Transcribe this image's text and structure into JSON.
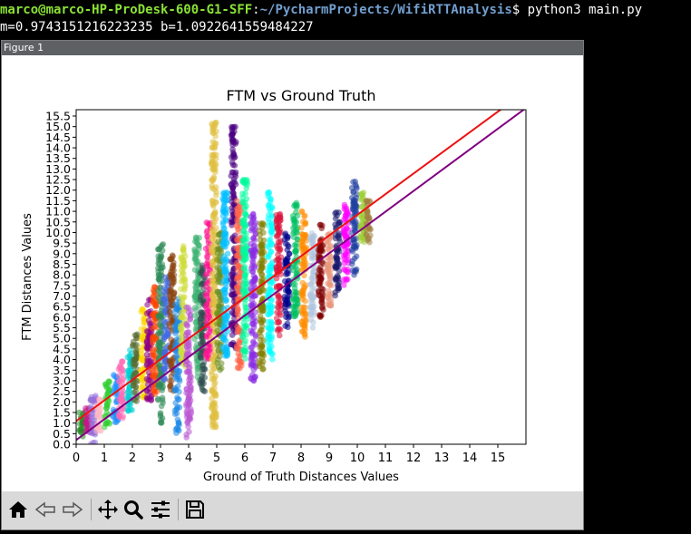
{
  "terminal": {
    "user_host": "marco@marco-HP-ProDesk-600-G1-SFF",
    "separator": ":",
    "path": "~/PycharmProjects/WifiRTTAnalysis",
    "prompt_symbol": "$",
    "command": " python3 main.py",
    "output_line": "m=0.9743151216223235 b=1.0922641559484227"
  },
  "figure_window": {
    "title": "Figure 1"
  },
  "toolbar": {
    "buttons": [
      {
        "name": "home",
        "icon": "home-icon"
      },
      {
        "name": "back",
        "icon": "back-arrow-icon"
      },
      {
        "name": "forward",
        "icon": "forward-arrow-icon"
      },
      {
        "name": "pan",
        "icon": "move-icon"
      },
      {
        "name": "zoom",
        "icon": "zoom-icon"
      },
      {
        "name": "configure",
        "icon": "sliders-icon"
      },
      {
        "name": "save",
        "icon": "save-icon"
      }
    ]
  },
  "chart_data": {
    "type": "scatter",
    "title": "FTM vs Ground Truth",
    "xlabel": "Ground of Truth Distances Values",
    "ylabel": "FTM Distances Values",
    "xlim": [
      0,
      16
    ],
    "ylim": [
      0,
      15.8
    ],
    "xticks": [
      "0",
      "1",
      "2",
      "3",
      "4",
      "5",
      "6",
      "7",
      "8",
      "9",
      "10",
      "11",
      "12",
      "13",
      "14",
      "15"
    ],
    "yticks": [
      "0.0",
      "0.5",
      "1.0",
      "1.5",
      "2.0",
      "2.5",
      "3.0",
      "3.5",
      "4.0",
      "4.5",
      "5.0",
      "5.5",
      "6.0",
      "6.5",
      "7.0",
      "7.5",
      "8.0",
      "8.5",
      "9.0",
      "9.5",
      "10.0",
      "10.5",
      "11.0",
      "11.5",
      "12.0",
      "12.5",
      "13.0",
      "13.5",
      "14.0",
      "14.5",
      "15.0",
      "15.5"
    ],
    "lines": [
      {
        "color": "#ee1111",
        "slope": 0.9743151216223235,
        "intercept": 1.0922641559484227
      },
      {
        "color": "#800080",
        "slope": 0.98,
        "intercept": 0.2
      }
    ],
    "clusters": [
      {
        "x": 0.2,
        "ymin": 0.3,
        "ymax": 1.6,
        "color": "#228b22"
      },
      {
        "x": 0.4,
        "ymin": 0.5,
        "ymax": 1.8,
        "color": "#c71585"
      },
      {
        "x": 0.6,
        "ymin": 0.0,
        "ymax": 2.3,
        "color": "#9370db"
      },
      {
        "x": 0.8,
        "ymin": 0.6,
        "ymax": 2.2,
        "color": "#ffb6c1"
      },
      {
        "x": 1.1,
        "ymin": 0.8,
        "ymax": 3.0,
        "color": "#32cd32"
      },
      {
        "x": 1.4,
        "ymin": 1.0,
        "ymax": 3.4,
        "color": "#1e90ff"
      },
      {
        "x": 1.6,
        "ymin": 1.2,
        "ymax": 4.0,
        "color": "#ff69b4"
      },
      {
        "x": 1.9,
        "ymin": 1.5,
        "ymax": 4.6,
        "color": "#00ced1"
      },
      {
        "x": 2.1,
        "ymin": 2.0,
        "ymax": 5.2,
        "color": "#556b2f"
      },
      {
        "x": 2.4,
        "ymin": 2.2,
        "ymax": 6.5,
        "color": "#ffd700"
      },
      {
        "x": 2.6,
        "ymin": 2.0,
        "ymax": 7.0,
        "color": "#8b008b"
      },
      {
        "x": 2.8,
        "ymin": 2.3,
        "ymax": 7.5,
        "color": "#ff4500"
      },
      {
        "x": 3.0,
        "ymin": 1.0,
        "ymax": 9.5,
        "color": "#2e8b57"
      },
      {
        "x": 3.2,
        "ymin": 3.0,
        "ymax": 8.0,
        "color": "#4169e1"
      },
      {
        "x": 3.4,
        "ymin": 2.5,
        "ymax": 9.0,
        "color": "#8b4513"
      },
      {
        "x": 3.6,
        "ymin": 0.5,
        "ymax": 7.0,
        "color": "#1e88e5"
      },
      {
        "x": 3.8,
        "ymin": 3.5,
        "ymax": 9.5,
        "color": "#cddc39"
      },
      {
        "x": 4.0,
        "ymin": 0.3,
        "ymax": 6.5,
        "color": "#ba55d3"
      },
      {
        "x": 4.3,
        "ymin": 3.0,
        "ymax": 9.8,
        "color": "#3cb371"
      },
      {
        "x": 4.5,
        "ymin": 2.5,
        "ymax": 8.5,
        "color": "#2f4f4f"
      },
      {
        "x": 4.7,
        "ymin": 4.0,
        "ymax": 10.5,
        "color": "#ff1493"
      },
      {
        "x": 4.9,
        "ymin": 0.8,
        "ymax": 15.5,
        "color": "#e0c040"
      },
      {
        "x": 5.1,
        "ymin": 3.5,
        "ymax": 10.0,
        "color": "#6b8e23"
      },
      {
        "x": 5.3,
        "ymin": 4.0,
        "ymax": 12.0,
        "color": "#00bfff"
      },
      {
        "x": 5.6,
        "ymin": 4.5,
        "ymax": 15.0,
        "color": "#4b0082"
      },
      {
        "x": 5.8,
        "ymin": 3.5,
        "ymax": 11.5,
        "color": "#ff6347"
      },
      {
        "x": 6.0,
        "ymin": 4.0,
        "ymax": 12.5,
        "color": "#00fa9a"
      },
      {
        "x": 6.3,
        "ymin": 3.0,
        "ymax": 11.0,
        "color": "#8a2be2"
      },
      {
        "x": 6.6,
        "ymin": 3.5,
        "ymax": 10.5,
        "color": "#808000"
      },
      {
        "x": 6.9,
        "ymin": 4.0,
        "ymax": 12.0,
        "color": "#00ffff"
      },
      {
        "x": 7.2,
        "ymin": 5.0,
        "ymax": 11.0,
        "color": "#dc143c"
      },
      {
        "x": 7.5,
        "ymin": 5.5,
        "ymax": 10.0,
        "color": "#00008b"
      },
      {
        "x": 7.8,
        "ymin": 6.0,
        "ymax": 11.5,
        "color": "#00c060"
      },
      {
        "x": 8.1,
        "ymin": 5.0,
        "ymax": 11.0,
        "color": "#ff8c00"
      },
      {
        "x": 8.4,
        "ymin": 5.5,
        "ymax": 10.0,
        "color": "#b0c4de"
      },
      {
        "x": 8.7,
        "ymin": 6.0,
        "ymax": 10.5,
        "color": "#800000"
      },
      {
        "x": 9.0,
        "ymin": 6.5,
        "ymax": 10.0,
        "color": "#e9967a"
      },
      {
        "x": 9.3,
        "ymin": 7.0,
        "ymax": 11.0,
        "color": "#191970"
      },
      {
        "x": 9.6,
        "ymin": 7.5,
        "ymax": 11.5,
        "color": "#ff00ff"
      },
      {
        "x": 9.9,
        "ymin": 8.0,
        "ymax": 12.5,
        "color": "#2040a0"
      },
      {
        "x": 10.2,
        "ymin": 9.5,
        "ymax": 12.0,
        "color": "#9acd32"
      },
      {
        "x": 10.4,
        "ymin": 9.5,
        "ymax": 11.5,
        "color": "#a08040"
      }
    ]
  }
}
